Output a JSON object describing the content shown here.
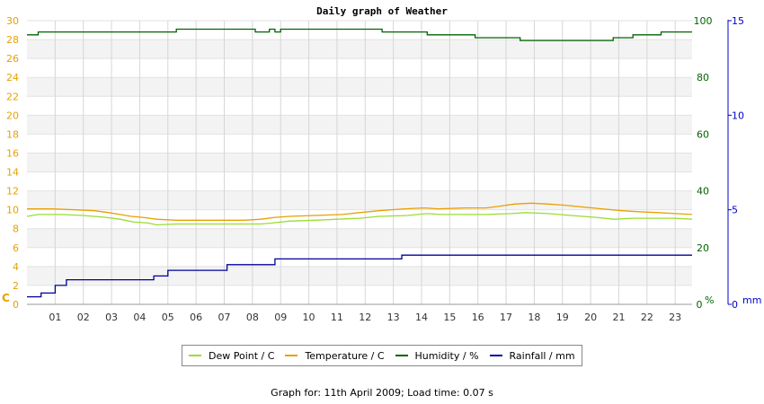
{
  "chart_data": {
    "type": "line",
    "title": "Daily graph of Weather",
    "x_tick_labels": [
      "01",
      "02",
      "03",
      "04",
      "05",
      "06",
      "07",
      "08",
      "09",
      "10",
      "11",
      "12",
      "13",
      "14",
      "15",
      "16",
      "17",
      "18",
      "19",
      "20",
      "21",
      "22",
      "23"
    ],
    "x_range_hours": [
      0,
      23.6
    ],
    "axes": {
      "left": {
        "unit_label": "C",
        "range": [
          0,
          30
        ],
        "ticks": [
          0,
          2,
          4,
          6,
          8,
          10,
          12,
          14,
          16,
          18,
          20,
          22,
          24,
          26,
          28,
          30
        ],
        "color": "#e8a000"
      },
      "humidity": {
        "unit_label": "%",
        "range": [
          0,
          100
        ],
        "ticks": [
          0,
          20,
          40,
          60,
          80,
          100
        ],
        "color": "#006400"
      },
      "rain": {
        "unit_label": "mm",
        "range": [
          0,
          15
        ],
        "ticks": [
          0,
          5,
          10,
          15
        ],
        "color": "#0000cc"
      }
    },
    "series": [
      {
        "name": "Dew Point / C",
        "axis": "left",
        "color": "#99dd33",
        "points": [
          [
            0,
            9.3
          ],
          [
            0.4,
            9.5
          ],
          [
            1.2,
            9.5
          ],
          [
            2,
            9.4
          ],
          [
            2.8,
            9.2
          ],
          [
            3.3,
            9.0
          ],
          [
            3.8,
            8.7
          ],
          [
            4.3,
            8.6
          ],
          [
            4.6,
            8.4
          ],
          [
            5.3,
            8.5
          ],
          [
            6.5,
            8.5
          ],
          [
            7.5,
            8.5
          ],
          [
            8.3,
            8.5
          ],
          [
            8.7,
            8.6
          ],
          [
            9.3,
            8.8
          ],
          [
            10.2,
            8.9
          ],
          [
            11,
            9.0
          ],
          [
            11.8,
            9.1
          ],
          [
            12.5,
            9.3
          ],
          [
            13.5,
            9.4
          ],
          [
            14.2,
            9.6
          ],
          [
            14.7,
            9.5
          ],
          [
            15.8,
            9.5
          ],
          [
            16.3,
            9.5
          ],
          [
            17.2,
            9.6
          ],
          [
            17.7,
            9.7
          ],
          [
            18.5,
            9.6
          ],
          [
            19.3,
            9.4
          ],
          [
            20.2,
            9.2
          ],
          [
            20.8,
            9.0
          ],
          [
            21.5,
            9.1
          ],
          [
            22.2,
            9.1
          ],
          [
            23.0,
            9.1
          ],
          [
            23.6,
            9.0
          ]
        ]
      },
      {
        "name": "Temperature / C",
        "axis": "left",
        "color": "#e8a000",
        "points": [
          [
            0,
            10.1
          ],
          [
            0.9,
            10.1
          ],
          [
            1.7,
            10.0
          ],
          [
            2.4,
            9.9
          ],
          [
            2.9,
            9.7
          ],
          [
            3.3,
            9.5
          ],
          [
            3.7,
            9.3
          ],
          [
            4.1,
            9.2
          ],
          [
            4.6,
            9.0
          ],
          [
            5.3,
            8.9
          ],
          [
            6.5,
            8.9
          ],
          [
            7.7,
            8.9
          ],
          [
            8.3,
            9.0
          ],
          [
            8.8,
            9.2
          ],
          [
            9.3,
            9.3
          ],
          [
            10.2,
            9.4
          ],
          [
            11.2,
            9.5
          ],
          [
            11.8,
            9.7
          ],
          [
            12.5,
            9.9
          ],
          [
            13.4,
            10.1
          ],
          [
            14.1,
            10.2
          ],
          [
            14.6,
            10.1
          ],
          [
            15.6,
            10.2
          ],
          [
            16.3,
            10.2
          ],
          [
            16.8,
            10.4
          ],
          [
            17.3,
            10.6
          ],
          [
            17.9,
            10.7
          ],
          [
            18.5,
            10.6
          ],
          [
            19.0,
            10.5
          ],
          [
            19.7,
            10.3
          ],
          [
            20.4,
            10.1
          ],
          [
            21.1,
            9.9
          ],
          [
            21.7,
            9.8
          ],
          [
            22.4,
            9.7
          ],
          [
            23.0,
            9.6
          ],
          [
            23.6,
            9.5
          ]
        ]
      },
      {
        "name": "Humidity / %",
        "axis": "humidity",
        "color": "#006400",
        "step": true,
        "points": [
          [
            0,
            95
          ],
          [
            0.4,
            96
          ],
          [
            5.3,
            97
          ],
          [
            8.1,
            96
          ],
          [
            8.6,
            97
          ],
          [
            8.8,
            96
          ],
          [
            9.0,
            97
          ],
          [
            12.6,
            96
          ],
          [
            14.2,
            95
          ],
          [
            15.9,
            94
          ],
          [
            17.5,
            93
          ],
          [
            20.8,
            94
          ],
          [
            21.5,
            95
          ],
          [
            22.5,
            96
          ],
          [
            23.6,
            96
          ]
        ]
      },
      {
        "name": "Rainfall / mm",
        "axis": "rain",
        "color": "#000099",
        "step": true,
        "points": [
          [
            0,
            0.4
          ],
          [
            0.5,
            0.6
          ],
          [
            1.0,
            1.0
          ],
          [
            1.4,
            1.3
          ],
          [
            4.5,
            1.5
          ],
          [
            5.0,
            1.8
          ],
          [
            7.1,
            2.1
          ],
          [
            8.8,
            2.4
          ],
          [
            13.3,
            2.6
          ],
          [
            23.6,
            2.6
          ]
        ]
      }
    ],
    "grid": true,
    "legend_position": "bottom"
  },
  "footer_text": "Graph for: 11th April 2009; Load time: 0.07 s"
}
